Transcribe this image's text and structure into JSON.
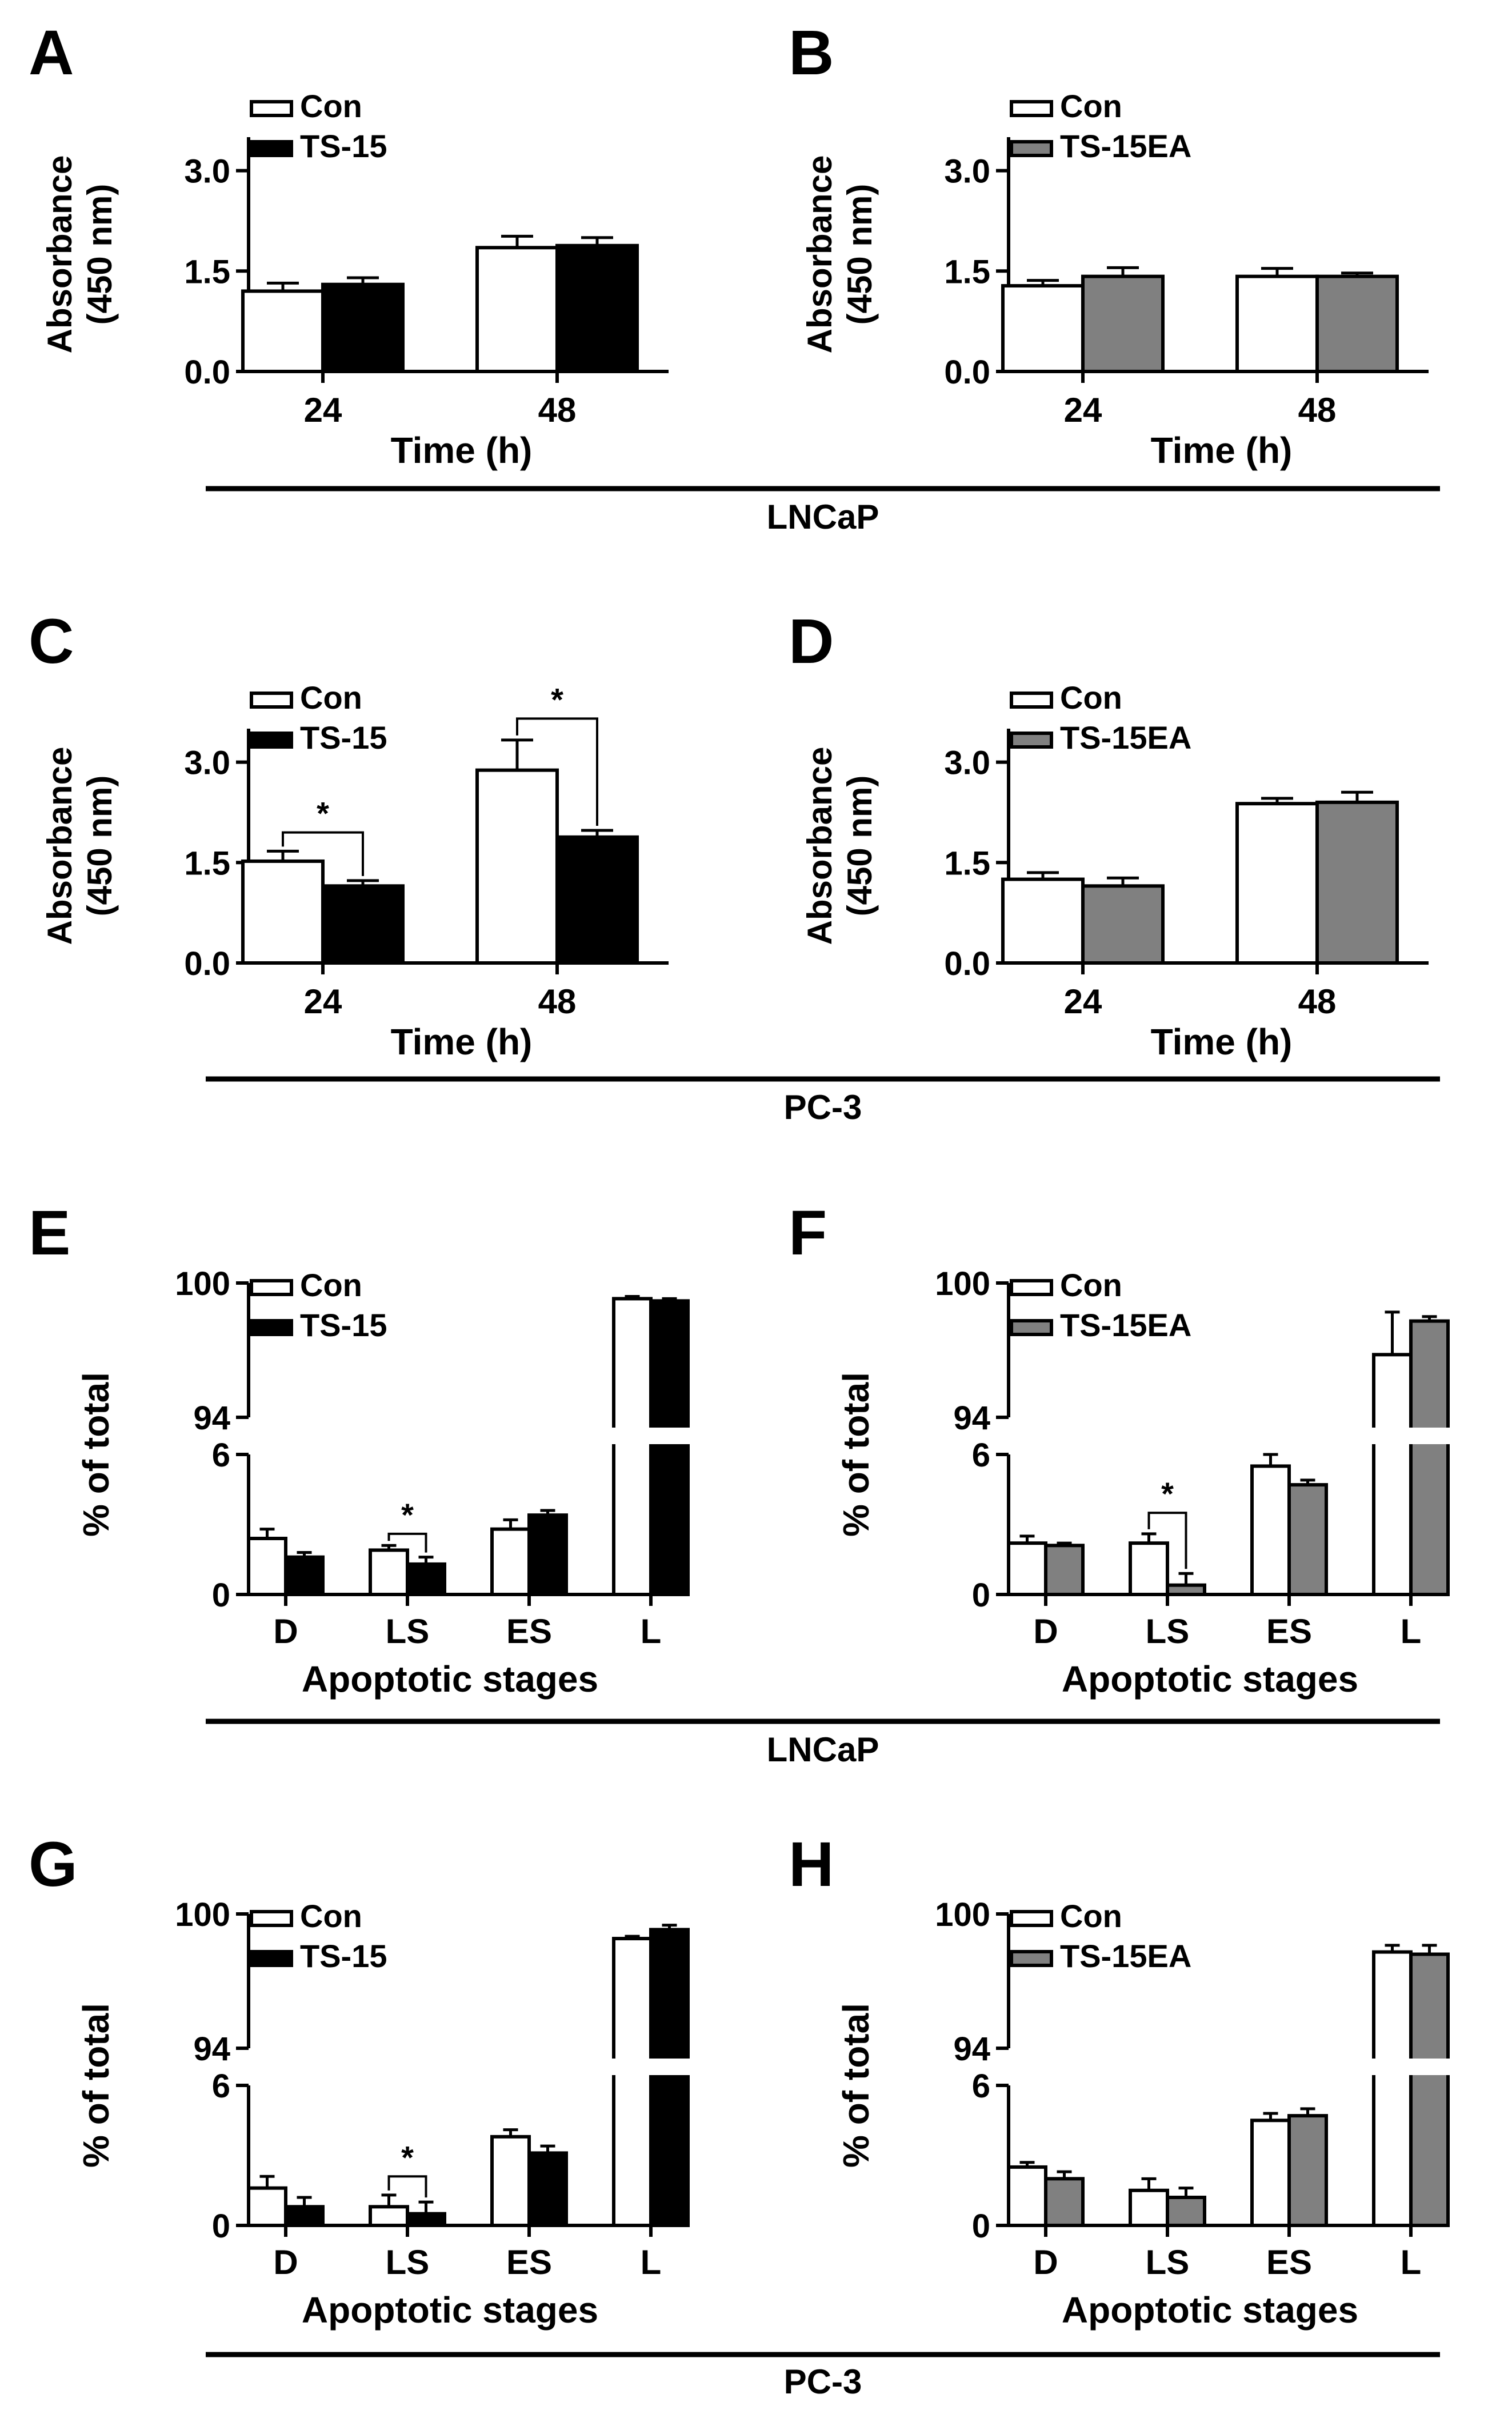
{
  "colors": {
    "con": "#ffffff",
    "ts15": "#000000",
    "ts15ea": "#808080"
  },
  "group_labels": [
    "LNCaP",
    "PC-3",
    "LNCaP",
    "PC-3"
  ],
  "chart_data": [
    {
      "panel": "A",
      "type": "bar",
      "cell_line": "LNCaP",
      "categories": [
        "24",
        "48"
      ],
      "series": [
        {
          "name": "Con",
          "color": "con",
          "values": [
            1.2,
            1.85
          ],
          "errors": [
            0.12,
            0.17
          ]
        },
        {
          "name": "TS-15",
          "color": "ts15",
          "values": [
            1.3,
            1.88
          ],
          "errors": [
            0.1,
            0.12
          ]
        }
      ],
      "xlabel": "Time (h)",
      "ylabel": [
        "Absorbance",
        "(450 nm)"
      ],
      "ylim": [
        0,
        3.5
      ],
      "yticks": [
        {
          "v": 0,
          "label": "0.0"
        },
        {
          "v": 1.5,
          "label": "1.5"
        },
        {
          "v": 3,
          "label": "3.0"
        }
      ],
      "sig": []
    },
    {
      "panel": "B",
      "type": "bar",
      "cell_line": "LNCaP",
      "categories": [
        "24",
        "48"
      ],
      "series": [
        {
          "name": "Con",
          "color": "con",
          "values": [
            1.28,
            1.42
          ],
          "errors": [
            0.08,
            0.12
          ]
        },
        {
          "name": "TS-15EA",
          "color": "ts15ea",
          "values": [
            1.42,
            1.42
          ],
          "errors": [
            0.13,
            0.05
          ]
        }
      ],
      "xlabel": "Time (h)",
      "ylabel": [
        "Absorbance",
        "(450 nm)"
      ],
      "ylim": [
        0,
        3.5
      ],
      "yticks": [
        {
          "v": 0,
          "label": "0.0"
        },
        {
          "v": 1.5,
          "label": "1.5"
        },
        {
          "v": 3,
          "label": "3.0"
        }
      ],
      "sig": []
    },
    {
      "panel": "C",
      "type": "bar",
      "cell_line": "PC-3",
      "categories": [
        "24",
        "48"
      ],
      "series": [
        {
          "name": "Con",
          "color": "con",
          "values": [
            1.52,
            2.88
          ],
          "errors": [
            0.15,
            0.45
          ]
        },
        {
          "name": "TS-15",
          "color": "ts15",
          "values": [
            1.15,
            1.88
          ],
          "errors": [
            0.08,
            0.1
          ]
        }
      ],
      "xlabel": "Time (h)",
      "ylabel": [
        "Absorbance",
        "(450 nm)"
      ],
      "ylim": [
        0,
        3.5
      ],
      "yticks": [
        {
          "v": 0,
          "label": "0.0"
        },
        {
          "v": 1.5,
          "label": "1.5"
        },
        {
          "v": 3,
          "label": "3.0"
        }
      ],
      "sig": [
        {
          "category": 0,
          "bracket_y": 1.95,
          "label": "*"
        },
        {
          "category": 1,
          "bracket_y": 3.65,
          "label": "*"
        }
      ]
    },
    {
      "panel": "D",
      "type": "bar",
      "cell_line": "PC-3",
      "categories": [
        "24",
        "48"
      ],
      "series": [
        {
          "name": "Con",
          "color": "con",
          "values": [
            1.25,
            2.38
          ],
          "errors": [
            0.1,
            0.08
          ]
        },
        {
          "name": "TS-15EA",
          "color": "ts15ea",
          "values": [
            1.15,
            2.4
          ],
          "errors": [
            0.12,
            0.15
          ]
        }
      ],
      "xlabel": "Time (h)",
      "ylabel": [
        "Absorbance",
        "(450 nm)"
      ],
      "ylim": [
        0,
        3.5
      ],
      "yticks": [
        {
          "v": 0,
          "label": "0.0"
        },
        {
          "v": 1.5,
          "label": "1.5"
        },
        {
          "v": 3,
          "label": "3.0"
        }
      ],
      "sig": []
    },
    {
      "panel": "E",
      "type": "bar",
      "cell_line": "LNCaP",
      "categories": [
        "D",
        "LS",
        "ES",
        "L"
      ],
      "series": [
        {
          "name": "Con",
          "color": "con",
          "values": [
            2.4,
            1.9,
            2.8,
            99.3
          ],
          "errors": [
            0.4,
            0.2,
            0.4,
            0.1
          ]
        },
        {
          "name": "TS-15",
          "color": "ts15",
          "values": [
            1.6,
            1.3,
            3.4,
            99.2
          ],
          "errors": [
            0.2,
            0.3,
            0.2,
            0.1
          ]
        }
      ],
      "xlabel": "Apoptotic stages",
      "ylabel": [
        "% of total"
      ],
      "broken_axis": {
        "lower": [
          0,
          6
        ],
        "upper": [
          94,
          100
        ]
      },
      "yticks": [
        {
          "v": 0,
          "label": "0"
        },
        {
          "v": 6,
          "label": "6"
        },
        {
          "v": 94,
          "label": "94"
        },
        {
          "v": 100,
          "label": "100"
        }
      ],
      "sig": [
        {
          "category": 1,
          "bracket_y": 2.6,
          "label": "*"
        }
      ]
    },
    {
      "panel": "F",
      "type": "bar",
      "cell_line": "LNCaP",
      "categories": [
        "D",
        "LS",
        "ES",
        "L"
      ],
      "series": [
        {
          "name": "Con",
          "color": "con",
          "values": [
            2.2,
            2.2,
            5.5,
            96.8
          ],
          "errors": [
            0.3,
            0.4,
            0.5,
            1.9
          ]
        },
        {
          "name": "TS-15EA",
          "color": "ts15ea",
          "values": [
            2.1,
            0.4,
            4.7,
            98.3
          ],
          "errors": [
            0.1,
            0.5,
            0.2,
            0.2
          ]
        }
      ],
      "xlabel": "Apoptotic stages",
      "ylabel": [
        "% of total"
      ],
      "broken_axis": {
        "lower": [
          0,
          6
        ],
        "upper": [
          94,
          100
        ]
      },
      "yticks": [
        {
          "v": 0,
          "label": "0"
        },
        {
          "v": 6,
          "label": "6"
        },
        {
          "v": 94,
          "label": "94"
        },
        {
          "v": 100,
          "label": "100"
        }
      ],
      "sig": [
        {
          "category": 1,
          "bracket_y": 3.5,
          "label": "*"
        }
      ]
    },
    {
      "panel": "G",
      "type": "bar",
      "cell_line": "PC-3",
      "categories": [
        "D",
        "LS",
        "ES",
        "L"
      ],
      "series": [
        {
          "name": "Con",
          "color": "con",
          "values": [
            1.6,
            0.8,
            3.8,
            98.9
          ],
          "errors": [
            0.5,
            0.5,
            0.3,
            0.1
          ]
        },
        {
          "name": "TS-15",
          "color": "ts15",
          "values": [
            0.8,
            0.5,
            3.1,
            99.3
          ],
          "errors": [
            0.4,
            0.5,
            0.3,
            0.2
          ]
        }
      ],
      "xlabel": "Apoptotic stages",
      "ylabel": [
        "% of total"
      ],
      "broken_axis": {
        "lower": [
          0,
          6
        ],
        "upper": [
          94,
          100
        ]
      },
      "yticks": [
        {
          "v": 0,
          "label": "0"
        },
        {
          "v": 6,
          "label": "6"
        },
        {
          "v": 94,
          "label": "94"
        },
        {
          "v": 100,
          "label": "100"
        }
      ],
      "sig": [
        {
          "category": 1,
          "bracket_y": 2.1,
          "label": "*"
        }
      ]
    },
    {
      "panel": "H",
      "type": "bar",
      "cell_line": "PC-3",
      "categories": [
        "D",
        "LS",
        "ES",
        "L"
      ],
      "series": [
        {
          "name": "Con",
          "color": "con",
          "values": [
            2.5,
            1.5,
            4.5,
            98.3
          ],
          "errors": [
            0.2,
            0.5,
            0.3,
            0.3
          ]
        },
        {
          "name": "TS-15EA",
          "color": "ts15ea",
          "values": [
            2.0,
            1.2,
            4.7,
            98.2
          ],
          "errors": [
            0.3,
            0.4,
            0.3,
            0.4
          ]
        }
      ],
      "xlabel": "Apoptotic stages",
      "ylabel": [
        "% of total"
      ],
      "broken_axis": {
        "lower": [
          0,
          6
        ],
        "upper": [
          94,
          100
        ]
      },
      "yticks": [
        {
          "v": 0,
          "label": "0"
        },
        {
          "v": 6,
          "label": "6"
        },
        {
          "v": 94,
          "label": "94"
        },
        {
          "v": 100,
          "label": "100"
        }
      ],
      "sig": []
    }
  ]
}
